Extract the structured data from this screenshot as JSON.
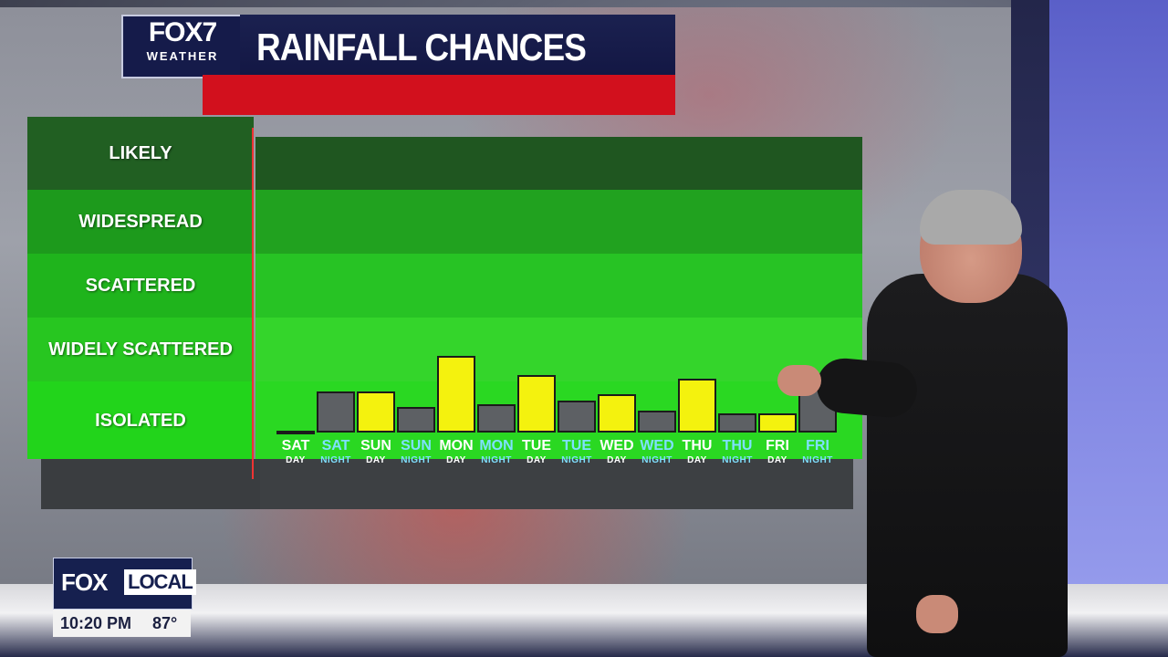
{
  "branding": {
    "logo_top": "FOX7",
    "logo_bottom": "WEATHER",
    "title": "RAINFALL CHANCES"
  },
  "lower_third": {
    "brand_fox": "FOX",
    "brand_local": "LOCAL",
    "time": "10:20 PM",
    "temperature": "87°"
  },
  "colors": {
    "day_bar": "#f4f20e",
    "night_bar": "#5d6064",
    "night_label": "#7fe0ff",
    "band_darkest": "#1f5a1f",
    "band_lightest": "#2fdc24"
  },
  "chart_data": {
    "type": "bar",
    "title": "RAINFALL CHANCES",
    "y_categories": [
      "ISOLATED",
      "WIDELY SCATTERED",
      "SCATTERED",
      "WIDESPREAD",
      "LIKELY"
    ],
    "ylim": [
      0,
      5
    ],
    "categories": [
      {
        "day": "SAT",
        "period": "DAY"
      },
      {
        "day": "SAT",
        "period": "NIGHT"
      },
      {
        "day": "SUN",
        "period": "DAY"
      },
      {
        "day": "SUN",
        "period": "NIGHT"
      },
      {
        "day": "MON",
        "period": "DAY"
      },
      {
        "day": "MON",
        "period": "NIGHT"
      },
      {
        "day": "TUE",
        "period": "DAY"
      },
      {
        "day": "TUE",
        "period": "NIGHT"
      },
      {
        "day": "WED",
        "period": "DAY"
      },
      {
        "day": "WED",
        "period": "NIGHT"
      },
      {
        "day": "THU",
        "period": "DAY"
      },
      {
        "day": "THU",
        "period": "NIGHT"
      },
      {
        "day": "FRI",
        "period": "DAY"
      },
      {
        "day": "FRI",
        "period": "NIGHT"
      }
    ],
    "values": [
      0,
      0.65,
      0.65,
      0.4,
      1.2,
      0.45,
      0.9,
      0.5,
      0.6,
      0.35,
      0.85,
      0.3,
      0.3,
      0.85
    ],
    "grid": false,
    "legend": "none"
  }
}
